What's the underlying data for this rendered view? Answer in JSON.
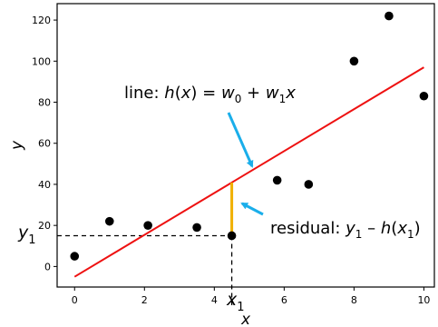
{
  "chart_data": {
    "type": "scatter",
    "xlabel": "x",
    "ylabel": "y",
    "xlim": [
      -0.5,
      10.3
    ],
    "ylim": [
      -10,
      128
    ],
    "x_ticks": [
      0,
      2,
      4,
      6,
      8,
      10
    ],
    "y_ticks": [
      0,
      20,
      40,
      60,
      80,
      100,
      120
    ],
    "grid": false,
    "points": {
      "x": [
        0,
        1,
        2.1,
        3.5,
        4.5,
        5.8,
        6.7,
        8,
        9,
        10
      ],
      "y": [
        5,
        22,
        20,
        19,
        15,
        42,
        40,
        100,
        122,
        83
      ],
      "color": "#000000"
    },
    "fit_line": {
      "x": [
        0,
        10
      ],
      "y": [
        -5,
        97
      ],
      "color": "#ee1111"
    },
    "residual": {
      "x": 4.5,
      "y_from": 15,
      "y_to": 40.9,
      "color": "#f0b000"
    },
    "guides": {
      "x": 4.5,
      "y": 15
    },
    "annotations": {
      "line_label": {
        "prefix": "line: ",
        "fn": "h",
        "arg": "(",
        "argvar": "x",
        "close_eq": ") = ",
        "w": "w",
        "sub0": "0",
        "plus": " + ",
        "w1": "w",
        "sub1": "1",
        "xvar": "x"
      },
      "residual_label": {
        "prefix": "residual: ",
        "y": "y",
        "sub1": "1",
        "minus": " – ",
        "fn": "h",
        "open": "(",
        "x": "x",
        "sub1b": "1",
        "close": ")"
      },
      "y1_label": {
        "base": "y",
        "sub": "1"
      },
      "x1_label": {
        "base": "x",
        "sub": "1"
      },
      "arrow_color": "#1aaeea"
    }
  }
}
